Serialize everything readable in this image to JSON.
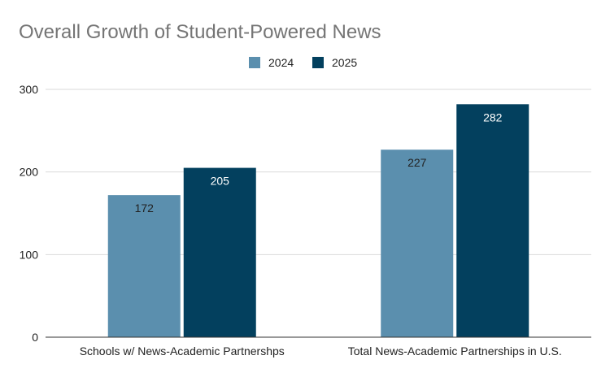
{
  "chart_data": {
    "type": "bar",
    "title": "Overall Growth of Student-Powered News",
    "xlabel": "",
    "ylabel": "",
    "categories": [
      "Schools w/ News-Academic Partnershps",
      "Total News-Academic Partnerships in U.S."
    ],
    "series": [
      {
        "name": "2024",
        "values": [
          172,
          227
        ],
        "color": "#5b8fae",
        "label_color": "#222222"
      },
      {
        "name": "2025",
        "values": [
          205,
          282
        ],
        "color": "#03405e",
        "label_color": "#ffffff"
      }
    ],
    "ylim": [
      0,
      300
    ],
    "yticks": [
      "0",
      "100",
      "200",
      "300"
    ],
    "grid": true,
    "legend": "top-center"
  }
}
